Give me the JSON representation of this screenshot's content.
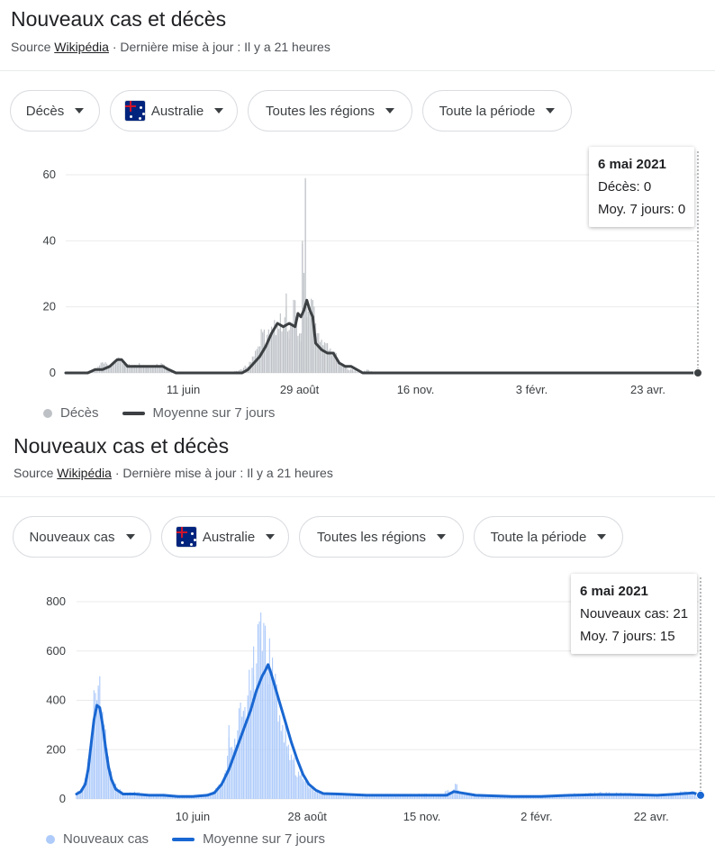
{
  "panels": [
    {
      "title": "Nouveaux cas et décès",
      "source_prefix": "Source ",
      "source_link": "Wikipédia",
      "source_suffix": " · Dernière mise à jour : Il y a 21 heures",
      "filters": {
        "metric": "Décès",
        "country": "Australie",
        "region": "Toutes les régions",
        "period": "Toute la période"
      },
      "tooltip": {
        "date": "6 mai 2021",
        "line1": "Décès: 0",
        "line2": "Moy. 7 jours: 0"
      },
      "legend": {
        "bars": "Décès",
        "line": "Moyenne sur 7 jours"
      },
      "colors": {
        "bar": "#bdc1c6",
        "line": "#3c4043"
      }
    },
    {
      "title": "Nouveaux cas et décès",
      "source_prefix": "Source ",
      "source_link": "Wikipédia",
      "source_suffix": " · Dernière mise à jour : Il y a 21 heures",
      "filters": {
        "metric": "Nouveaux cas",
        "country": "Australie",
        "region": "Toutes les régions",
        "period": "Toute la période"
      },
      "tooltip": {
        "date": "6 mai 2021",
        "line1": "Nouveaux cas: 21",
        "line2": "Moy. 7 jours: 15"
      },
      "legend": {
        "bars": "Nouveaux cas",
        "line": "Moyenne sur 7 jours"
      },
      "colors": {
        "bar": "#aecbfa",
        "line": "#1967d2"
      }
    }
  ],
  "chart_data": [
    {
      "type": "bar",
      "x_ticks": [
        "11 juin",
        "29 août",
        "16 nov.",
        "3 févr.",
        "23 avr."
      ],
      "y_ticks": [
        0,
        20,
        40,
        60
      ],
      "ylim": [
        0,
        60
      ],
      "x_start_day": 0,
      "x_end_day": 430,
      "x_tick_days": [
        80,
        159,
        238,
        317,
        396
      ],
      "series": [
        {
          "name": "Décès",
          "points": [
            [
              0,
              0
            ],
            [
              10,
              0
            ],
            [
              20,
              1
            ],
            [
              25,
              3
            ],
            [
              30,
              2
            ],
            [
              35,
              4
            ],
            [
              40,
              3
            ],
            [
              45,
              2
            ],
            [
              50,
              3
            ],
            [
              55,
              2
            ],
            [
              60,
              2
            ],
            [
              65,
              3
            ],
            [
              70,
              1
            ],
            [
              75,
              0
            ],
            [
              80,
              0
            ],
            [
              90,
              0
            ],
            [
              100,
              0
            ],
            [
              110,
              0
            ],
            [
              120,
              1
            ],
            [
              125,
              3
            ],
            [
              128,
              5
            ],
            [
              131,
              8
            ],
            [
              134,
              12
            ],
            [
              137,
              10
            ],
            [
              140,
              14
            ],
            [
              142,
              16
            ],
            [
              144,
              12
            ],
            [
              146,
              18
            ],
            [
              148,
              14
            ],
            [
              150,
              20
            ],
            [
              152,
              13
            ],
            [
              154,
              15
            ],
            [
              156,
              22
            ],
            [
              158,
              10
            ],
            [
              160,
              12
            ],
            [
              161,
              40
            ],
            [
              162,
              25
            ],
            [
              163,
              59
            ],
            [
              164,
              20
            ],
            [
              166,
              18
            ],
            [
              168,
              22
            ],
            [
              170,
              15
            ],
            [
              172,
              12
            ],
            [
              174,
              10
            ],
            [
              176,
              8
            ],
            [
              178,
              9
            ],
            [
              180,
              6
            ],
            [
              182,
              5
            ],
            [
              184,
              6
            ],
            [
              186,
              3
            ],
            [
              188,
              2
            ],
            [
              190,
              2
            ],
            [
              192,
              1
            ],
            [
              195,
              1
            ],
            [
              200,
              0
            ],
            [
              205,
              1
            ],
            [
              210,
              0
            ],
            [
              220,
              0
            ],
            [
              230,
              0
            ],
            [
              240,
              0
            ],
            [
              300,
              0
            ],
            [
              360,
              0
            ],
            [
              430,
              0
            ]
          ]
        },
        {
          "name": "Moyenne sur 7 jours",
          "points": [
            [
              0,
              0
            ],
            [
              15,
              0
            ],
            [
              20,
              1
            ],
            [
              25,
              1
            ],
            [
              30,
              2
            ],
            [
              35,
              4
            ],
            [
              38,
              4
            ],
            [
              42,
              2
            ],
            [
              50,
              2
            ],
            [
              60,
              2
            ],
            [
              66,
              2
            ],
            [
              70,
              1
            ],
            [
              75,
              0
            ],
            [
              90,
              0
            ],
            [
              100,
              0
            ],
            [
              110,
              0
            ],
            [
              120,
              0
            ],
            [
              124,
              1
            ],
            [
              128,
              3
            ],
            [
              132,
              5
            ],
            [
              136,
              8
            ],
            [
              140,
              12
            ],
            [
              144,
              15
            ],
            [
              148,
              14
            ],
            [
              152,
              15
            ],
            [
              156,
              14
            ],
            [
              158,
              18
            ],
            [
              160,
              17
            ],
            [
              162,
              19
            ],
            [
              164,
              22
            ],
            [
              166,
              19
            ],
            [
              168,
              17
            ],
            [
              170,
              9
            ],
            [
              174,
              7
            ],
            [
              178,
              6
            ],
            [
              182,
              6
            ],
            [
              186,
              3
            ],
            [
              190,
              2
            ],
            [
              194,
              2
            ],
            [
              198,
              1
            ],
            [
              202,
              0
            ],
            [
              210,
              0
            ],
            [
              240,
              0
            ],
            [
              300,
              0
            ],
            [
              360,
              0
            ],
            [
              430,
              0
            ]
          ]
        }
      ]
    },
    {
      "type": "bar",
      "x_ticks": [
        "10 juin",
        "28 août",
        "15 nov.",
        "2 févr.",
        "22 avr."
      ],
      "y_ticks": [
        0,
        200,
        400,
        600,
        800
      ],
      "ylim": [
        0,
        800
      ],
      "x_start_day": 0,
      "x_end_day": 430,
      "x_tick_days": [
        80,
        159,
        238,
        317,
        396
      ],
      "series": [
        {
          "name": "Nouveaux cas",
          "points": [
            [
              0,
              20
            ],
            [
              3,
              40
            ],
            [
              6,
              80
            ],
            [
              8,
              150
            ],
            [
              10,
              250
            ],
            [
              12,
              380
            ],
            [
              13,
              430
            ],
            [
              14,
              400
            ],
            [
              15,
              460
            ],
            [
              17,
              360
            ],
            [
              19,
              300
            ],
            [
              21,
              200
            ],
            [
              23,
              120
            ],
            [
              25,
              70
            ],
            [
              28,
              40
            ],
            [
              32,
              25
            ],
            [
              36,
              20
            ],
            [
              40,
              30
            ],
            [
              45,
              20
            ],
            [
              50,
              15
            ],
            [
              55,
              10
            ],
            [
              60,
              15
            ],
            [
              70,
              10
            ],
            [
              80,
              10
            ],
            [
              90,
              15
            ],
            [
              95,
              30
            ],
            [
              100,
              60
            ],
            [
              103,
              100
            ],
            [
              105,
              250
            ],
            [
              108,
              180
            ],
            [
              110,
              220
            ],
            [
              112,
              300
            ],
            [
              115,
              350
            ],
            [
              118,
              400
            ],
            [
              120,
              440
            ],
            [
              122,
              500
            ],
            [
              124,
              550
            ],
            [
              126,
              720
            ],
            [
              128,
              600
            ],
            [
              130,
              680
            ],
            [
              132,
              540
            ],
            [
              134,
              510
            ],
            [
              136,
              480
            ],
            [
              138,
              400
            ],
            [
              140,
              340
            ],
            [
              142,
              300
            ],
            [
              144,
              260
            ],
            [
              146,
              220
            ],
            [
              148,
              180
            ],
            [
              150,
              140
            ],
            [
              153,
              100
            ],
            [
              156,
              80
            ],
            [
              160,
              50
            ],
            [
              165,
              30
            ],
            [
              170,
              20
            ],
            [
              180,
              20
            ],
            [
              200,
              15
            ],
            [
              220,
              15
            ],
            [
              240,
              20
            ],
            [
              250,
              15
            ],
            [
              260,
              40
            ],
            [
              262,
              60
            ],
            [
              265,
              20
            ],
            [
              280,
              15
            ],
            [
              300,
              10
            ],
            [
              320,
              10
            ],
            [
              340,
              20
            ],
            [
              360,
              25
            ],
            [
              380,
              20
            ],
            [
              400,
              15
            ],
            [
              410,
              20
            ],
            [
              420,
              30
            ],
            [
              430,
              21
            ]
          ]
        },
        {
          "name": "Moyenne sur 7 jours",
          "points": [
            [
              0,
              20
            ],
            [
              3,
              30
            ],
            [
              6,
              60
            ],
            [
              8,
              120
            ],
            [
              10,
              220
            ],
            [
              12,
              320
            ],
            [
              14,
              380
            ],
            [
              16,
              370
            ],
            [
              18,
              300
            ],
            [
              20,
              210
            ],
            [
              22,
              130
            ],
            [
              24,
              80
            ],
            [
              27,
              40
            ],
            [
              32,
              20
            ],
            [
              40,
              20
            ],
            [
              50,
              15
            ],
            [
              60,
              15
            ],
            [
              70,
              10
            ],
            [
              80,
              10
            ],
            [
              90,
              15
            ],
            [
              95,
              25
            ],
            [
              100,
              60
            ],
            [
              105,
              120
            ],
            [
              110,
              200
            ],
            [
              115,
              280
            ],
            [
              120,
              360
            ],
            [
              124,
              440
            ],
            [
              128,
              500
            ],
            [
              130,
              520
            ],
            [
              132,
              545
            ],
            [
              134,
              510
            ],
            [
              136,
              470
            ],
            [
              140,
              390
            ],
            [
              144,
              310
            ],
            [
              148,
              230
            ],
            [
              152,
              160
            ],
            [
              156,
              100
            ],
            [
              160,
              60
            ],
            [
              165,
              35
            ],
            [
              170,
              22
            ],
            [
              180,
              20
            ],
            [
              200,
              15
            ],
            [
              220,
              15
            ],
            [
              240,
              15
            ],
            [
              255,
              15
            ],
            [
              260,
              30
            ],
            [
              265,
              25
            ],
            [
              275,
              15
            ],
            [
              300,
              10
            ],
            [
              320,
              10
            ],
            [
              340,
              15
            ],
            [
              360,
              18
            ],
            [
              380,
              18
            ],
            [
              400,
              15
            ],
            [
              415,
              20
            ],
            [
              425,
              25
            ],
            [
              430,
              15
            ]
          ]
        }
      ]
    }
  ]
}
